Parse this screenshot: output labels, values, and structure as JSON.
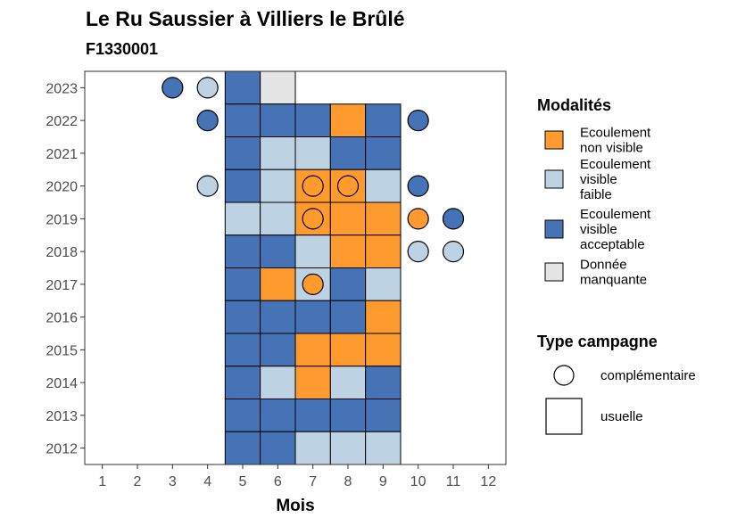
{
  "chart_data": {
    "type": "heatmap",
    "title": "Le Ru Saussier à Villiers le Brûlé",
    "subtitle": "F1330001",
    "xlabel": "Mois",
    "ylabel": "",
    "x_ticks": [
      1,
      2,
      3,
      4,
      5,
      6,
      7,
      8,
      9,
      10,
      11,
      12
    ],
    "y_ticks": [
      2012,
      2013,
      2014,
      2015,
      2016,
      2017,
      2018,
      2019,
      2020,
      2021,
      2022,
      2023
    ],
    "xlim": [
      0.5,
      12.5
    ],
    "ylim": [
      2011.5,
      2023.5
    ],
    "colors": {
      "nonvisible": "#FE9A2E",
      "faible": "#BDD3E3",
      "acceptable": "#4573B6",
      "manquante": "#E5E5E5"
    },
    "usuelle": [
      {
        "year": 2023,
        "month": 5,
        "cat": "acceptable"
      },
      {
        "year": 2023,
        "month": 6,
        "cat": "manquante"
      },
      {
        "year": 2022,
        "month": 5,
        "cat": "acceptable"
      },
      {
        "year": 2022,
        "month": 6,
        "cat": "acceptable"
      },
      {
        "year": 2022,
        "month": 7,
        "cat": "acceptable"
      },
      {
        "year": 2022,
        "month": 8,
        "cat": "nonvisible"
      },
      {
        "year": 2022,
        "month": 9,
        "cat": "acceptable"
      },
      {
        "year": 2021,
        "month": 5,
        "cat": "acceptable"
      },
      {
        "year": 2021,
        "month": 6,
        "cat": "faible"
      },
      {
        "year": 2021,
        "month": 7,
        "cat": "faible"
      },
      {
        "year": 2021,
        "month": 8,
        "cat": "acceptable"
      },
      {
        "year": 2021,
        "month": 9,
        "cat": "acceptable"
      },
      {
        "year": 2020,
        "month": 5,
        "cat": "acceptable"
      },
      {
        "year": 2020,
        "month": 6,
        "cat": "faible"
      },
      {
        "year": 2020,
        "month": 7,
        "cat": "nonvisible"
      },
      {
        "year": 2020,
        "month": 8,
        "cat": "nonvisible"
      },
      {
        "year": 2020,
        "month": 9,
        "cat": "faible"
      },
      {
        "year": 2019,
        "month": 5,
        "cat": "faible"
      },
      {
        "year": 2019,
        "month": 6,
        "cat": "faible"
      },
      {
        "year": 2019,
        "month": 7,
        "cat": "nonvisible"
      },
      {
        "year": 2019,
        "month": 8,
        "cat": "nonvisible"
      },
      {
        "year": 2019,
        "month": 9,
        "cat": "nonvisible"
      },
      {
        "year": 2018,
        "month": 5,
        "cat": "acceptable"
      },
      {
        "year": 2018,
        "month": 6,
        "cat": "acceptable"
      },
      {
        "year": 2018,
        "month": 7,
        "cat": "faible"
      },
      {
        "year": 2018,
        "month": 8,
        "cat": "nonvisible"
      },
      {
        "year": 2018,
        "month": 9,
        "cat": "nonvisible"
      },
      {
        "year": 2017,
        "month": 5,
        "cat": "acceptable"
      },
      {
        "year": 2017,
        "month": 6,
        "cat": "nonvisible"
      },
      {
        "year": 2017,
        "month": 7,
        "cat": "faible"
      },
      {
        "year": 2017,
        "month": 8,
        "cat": "acceptable"
      },
      {
        "year": 2017,
        "month": 9,
        "cat": "faible"
      },
      {
        "year": 2016,
        "month": 5,
        "cat": "acceptable"
      },
      {
        "year": 2016,
        "month": 6,
        "cat": "acceptable"
      },
      {
        "year": 2016,
        "month": 7,
        "cat": "acceptable"
      },
      {
        "year": 2016,
        "month": 8,
        "cat": "acceptable"
      },
      {
        "year": 2016,
        "month": 9,
        "cat": "nonvisible"
      },
      {
        "year": 2015,
        "month": 5,
        "cat": "acceptable"
      },
      {
        "year": 2015,
        "month": 6,
        "cat": "acceptable"
      },
      {
        "year": 2015,
        "month": 7,
        "cat": "nonvisible"
      },
      {
        "year": 2015,
        "month": 8,
        "cat": "nonvisible"
      },
      {
        "year": 2015,
        "month": 9,
        "cat": "nonvisible"
      },
      {
        "year": 2014,
        "month": 5,
        "cat": "acceptable"
      },
      {
        "year": 2014,
        "month": 6,
        "cat": "faible"
      },
      {
        "year": 2014,
        "month": 7,
        "cat": "nonvisible"
      },
      {
        "year": 2014,
        "month": 8,
        "cat": "faible"
      },
      {
        "year": 2014,
        "month": 9,
        "cat": "acceptable"
      },
      {
        "year": 2013,
        "month": 5,
        "cat": "acceptable"
      },
      {
        "year": 2013,
        "month": 6,
        "cat": "acceptable"
      },
      {
        "year": 2013,
        "month": 7,
        "cat": "acceptable"
      },
      {
        "year": 2013,
        "month": 8,
        "cat": "acceptable"
      },
      {
        "year": 2013,
        "month": 9,
        "cat": "acceptable"
      },
      {
        "year": 2012,
        "month": 5,
        "cat": "acceptable"
      },
      {
        "year": 2012,
        "month": 6,
        "cat": "acceptable"
      },
      {
        "year": 2012,
        "month": 7,
        "cat": "faible"
      },
      {
        "year": 2012,
        "month": 8,
        "cat": "faible"
      },
      {
        "year": 2012,
        "month": 9,
        "cat": "faible"
      }
    ],
    "complementaire": [
      {
        "year": 2023,
        "month": 3,
        "cat": "acceptable"
      },
      {
        "year": 2023,
        "month": 4,
        "cat": "faible"
      },
      {
        "year": 2022,
        "month": 4,
        "cat": "acceptable"
      },
      {
        "year": 2022,
        "month": 10,
        "cat": "acceptable"
      },
      {
        "year": 2020,
        "month": 4,
        "cat": "faible"
      },
      {
        "year": 2020,
        "month": 7,
        "cat": "nonvisible"
      },
      {
        "year": 2020,
        "month": 8,
        "cat": "nonvisible"
      },
      {
        "year": 2020,
        "month": 10,
        "cat": "acceptable"
      },
      {
        "year": 2019,
        "month": 7,
        "cat": "nonvisible"
      },
      {
        "year": 2019,
        "month": 10,
        "cat": "nonvisible"
      },
      {
        "year": 2019,
        "month": 11,
        "cat": "acceptable"
      },
      {
        "year": 2018,
        "month": 10,
        "cat": "faible"
      },
      {
        "year": 2018,
        "month": 11,
        "cat": "faible"
      },
      {
        "year": 2017,
        "month": 7,
        "cat": "nonvisible"
      }
    ],
    "legend": {
      "modalites_title": "Modalités",
      "modalites": [
        {
          "cat": "nonvisible",
          "lines": [
            "Ecoulement",
            "non visible"
          ]
        },
        {
          "cat": "faible",
          "lines": [
            "Ecoulement",
            "visible",
            "faible"
          ]
        },
        {
          "cat": "acceptable",
          "lines": [
            "Ecoulement",
            "visible",
            "acceptable"
          ]
        },
        {
          "cat": "manquante",
          "lines": [
            "Donnée",
            "manquante"
          ]
        }
      ],
      "campagne_title": "Type campagne",
      "campagne": [
        {
          "shape": "circle",
          "label": "complémentaire"
        },
        {
          "shape": "square",
          "label": "usuelle"
        }
      ],
      "placement": "right"
    }
  }
}
